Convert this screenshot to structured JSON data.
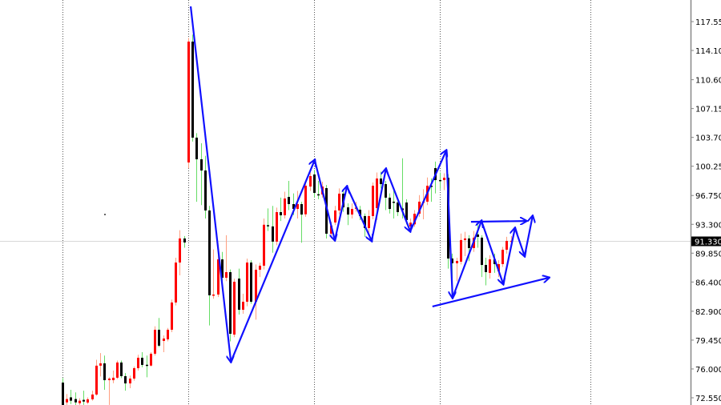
{
  "chart_data": {
    "type": "candlestick",
    "title": "",
    "xlabel": "",
    "ylabel": "",
    "ylim": [
      72.0,
      119.0
    ],
    "grid": "vertical dotted separators",
    "y_ticks": [
      "117.550",
      "114.100",
      "110.600",
      "107.150",
      "103.700",
      "100.250",
      "96.750",
      "93.300",
      "89.850",
      "86.400",
      "82.900",
      "79.450",
      "76.000",
      "72.550"
    ],
    "current_price": {
      "value": 91.33,
      "label": "91.330"
    },
    "separators_at_bar": [
      0,
      30,
      60,
      90,
      126
    ],
    "colors": {
      "bull_body": "#ff0000",
      "bull_wick": "#ff9f80",
      "bear_body": "#000000",
      "bear_wick": "#66dd66",
      "drawing": "#1010ff",
      "current_line": "#d0d0d0"
    },
    "candles_ohlc": [
      [
        74.37,
        74.9,
        71.5,
        71.69
      ],
      [
        72.0,
        73.0,
        71.7,
        72.4
      ],
      [
        72.6,
        73.5,
        71.8,
        72.2
      ],
      [
        72.4,
        73.2,
        71.6,
        72.0
      ],
      [
        71.9,
        72.5,
        71.6,
        72.2
      ],
      [
        72.3,
        73.4,
        71.7,
        72.1
      ],
      [
        71.98,
        72.6,
        71.8,
        72.37
      ],
      [
        72.37,
        73.4,
        72.2,
        72.94
      ],
      [
        72.94,
        77.1,
        72.8,
        76.39
      ],
      [
        76.39,
        77.9,
        75.1,
        76.67
      ],
      [
        76.67,
        77.6,
        73.5,
        74.66
      ],
      [
        74.66,
        75.0,
        71.7,
        74.85
      ],
      [
        74.66,
        75.8,
        74.3,
        74.95
      ],
      [
        74.95,
        77.0,
        74.8,
        76.77
      ],
      [
        76.77,
        77.0,
        74.9,
        75.14
      ],
      [
        75.14,
        75.5,
        73.4,
        74.27
      ],
      [
        74.27,
        75.2,
        73.7,
        74.85
      ],
      [
        74.85,
        76.3,
        74.6,
        76.09
      ],
      [
        76.09,
        77.7,
        75.8,
        77.34
      ],
      [
        77.34,
        78.0,
        76.2,
        76.48
      ],
      [
        76.5,
        77.6,
        75.0,
        76.48
      ],
      [
        76.4,
        78.0,
        76.3,
        77.82
      ],
      [
        77.82,
        81.1,
        77.6,
        80.69
      ],
      [
        80.69,
        82.1,
        78.6,
        78.78
      ],
      [
        79.35,
        80.0,
        78.0,
        79.64
      ],
      [
        79.54,
        80.9,
        79.3,
        80.69
      ],
      [
        80.69,
        84.3,
        80.4,
        83.95
      ],
      [
        83.95,
        89.3,
        83.6,
        88.73
      ],
      [
        88.73,
        92.6,
        87.2,
        91.61
      ],
      [
        91.61,
        91.9,
        90.5,
        91.13
      ],
      [
        100.7,
        115.6,
        100.0,
        115.16
      ],
      [
        115.16,
        116.0,
        103.2,
        103.67
      ],
      [
        103.67,
        104.2,
        96.0,
        101.08
      ],
      [
        101.08,
        103.0,
        95.6,
        99.74
      ],
      [
        99.74,
        101.5,
        94.0,
        94.96
      ],
      [
        94.96,
        95.5,
        81.2,
        84.81
      ],
      [
        84.81,
        90.3,
        84.4,
        84.9
      ],
      [
        84.9,
        90.0,
        84.6,
        89.11
      ],
      [
        89.11,
        90.0,
        85.5,
        86.91
      ],
      [
        86.91,
        92.0,
        86.5,
        87.58
      ],
      [
        87.58,
        87.9,
        79.3,
        80.21
      ],
      [
        80.11,
        86.8,
        79.8,
        86.43
      ],
      [
        86.81,
        88.0,
        82.5,
        83.08
      ],
      [
        83.08,
        85.0,
        82.6,
        84.04
      ],
      [
        84.04,
        89.2,
        83.5,
        88.73
      ],
      [
        88.73,
        89.0,
        83.8,
        84.04
      ],
      [
        84.04,
        88.5,
        81.9,
        87.87
      ],
      [
        87.87,
        88.7,
        87.0,
        88.35
      ],
      [
        88.35,
        94.0,
        87.9,
        93.25
      ],
      [
        93.2,
        95.2,
        92.5,
        93.15
      ],
      [
        93.05,
        95.5,
        89.9,
        91.23
      ],
      [
        91.23,
        95.3,
        90.8,
        94.76
      ],
      [
        94.76,
        96.5,
        93.7,
        94.38
      ],
      [
        94.38,
        97.2,
        94.0,
        96.39
      ],
      [
        96.58,
        98.5,
        95.0,
        95.72
      ],
      [
        95.72,
        97.0,
        94.4,
        95.14
      ],
      [
        95.14,
        97.3,
        94.0,
        95.72
      ],
      [
        95.72,
        96.0,
        91.1,
        94.47
      ],
      [
        94.5,
        98.5,
        94.2,
        97.92
      ],
      [
        97.82,
        99.5,
        97.3,
        99.07
      ],
      [
        99.26,
        99.8,
        96.5,
        97.06
      ],
      [
        96.9,
        98.5,
        96.3,
        96.87
      ],
      [
        96.87,
        98.4,
        96.5,
        97.82
      ],
      [
        97.63,
        98.0,
        91.6,
        92.18
      ],
      [
        92.18,
        93.6,
        91.6,
        93.15
      ],
      [
        93.52,
        95.5,
        93.2,
        94.96
      ],
      [
        94.96,
        97.6,
        94.5,
        96.97
      ],
      [
        96.97,
        97.3,
        94.8,
        95.33
      ],
      [
        95.33,
        95.8,
        93.2,
        94.47
      ],
      [
        94.47,
        95.8,
        94.0,
        95.14
      ],
      [
        95.2,
        96.0,
        94.8,
        95.3
      ],
      [
        95.05,
        95.5,
        93.8,
        94.29
      ],
      [
        94.29,
        94.6,
        91.8,
        92.85
      ],
      [
        92.85,
        95.0,
        92.3,
        94.29
      ],
      [
        94.29,
        98.3,
        93.9,
        97.92
      ],
      [
        95.24,
        99.5,
        93.8,
        98.78
      ],
      [
        98.78,
        99.6,
        97.6,
        98.11
      ],
      [
        98.11,
        98.5,
        95.0,
        96.49
      ],
      [
        96.49,
        97.0,
        94.6,
        95.14
      ],
      [
        96.01,
        97.5,
        94.0,
        95.95
      ],
      [
        95.91,
        96.3,
        94.3,
        94.76
      ],
      [
        95.2,
        101.2,
        94.0,
        95.0
      ],
      [
        95.91,
        96.3,
        93.3,
        93.81
      ],
      [
        93.05,
        94.0,
        92.6,
        93.5
      ],
      [
        93.3,
        95.0,
        93.0,
        94.57
      ],
      [
        94.57,
        96.8,
        94.2,
        96.01
      ],
      [
        95.91,
        97.5,
        93.9,
        96.01
      ],
      [
        96.01,
        98.9,
        95.6,
        97.92
      ],
      [
        97.92,
        98.8,
        96.0,
        97.9
      ],
      [
        100.03,
        100.8,
        97.0,
        98.59
      ],
      [
        98.6,
        99.5,
        97.5,
        98.59
      ],
      [
        98.59,
        99.4,
        97.4,
        98.88
      ],
      [
        98.88,
        99.3,
        88.0,
        89.21
      ],
      [
        89.21,
        89.8,
        86.0,
        88.64
      ],
      [
        88.64,
        89.3,
        86.5,
        88.92
      ],
      [
        88.83,
        92.2,
        88.5,
        91.42
      ],
      [
        91.42,
        92.4,
        89.5,
        91.61
      ],
      [
        91.61,
        92.0,
        88.9,
        90.46
      ],
      [
        90.46,
        92.5,
        90.0,
        91.71
      ],
      [
        92.09,
        93.5,
        90.5,
        91.8
      ],
      [
        91.71,
        92.0,
        87.0,
        88.44
      ],
      [
        88.44,
        89.3,
        86.0,
        87.58
      ],
      [
        87.49,
        89.6,
        86.8,
        89.11
      ],
      [
        89.11,
        89.8,
        87.5,
        88.54
      ],
      [
        87.68,
        89.0,
        87.0,
        88.54
      ],
      [
        88.54,
        90.6,
        88.2,
        90.26
      ],
      [
        90.26,
        91.8,
        89.8,
        91.32
      ],
      [
        91.3,
        91.9,
        90.6,
        91.33
      ]
    ],
    "drawings": {
      "zigzag": [
        [
          30.6,
          119.37
        ],
        [
          40.2,
          76.86
        ],
        [
          60.2,
          100.99
        ],
        [
          65.0,
          91.41
        ],
        [
          67.9,
          97.83
        ],
        [
          73.8,
          91.32
        ],
        [
          77.2,
          99.93
        ],
        [
          83.0,
          92.47
        ],
        [
          91.6,
          102.13
        ],
        [
          93.1,
          84.52
        ],
        [
          100.0,
          93.71
        ],
        [
          105.2,
          86.16
        ],
        [
          108.0,
          92.85
        ],
        [
          110.3,
          89.5
        ],
        [
          112.2,
          94.28
        ]
      ],
      "horizontal_arrow": [
        [
          97.5,
          93.6
        ],
        [
          110.7,
          93.7
        ]
      ],
      "trend_arrow": [
        [
          88.3,
          83.47
        ],
        [
          116.1,
          86.92
        ]
      ]
    }
  }
}
